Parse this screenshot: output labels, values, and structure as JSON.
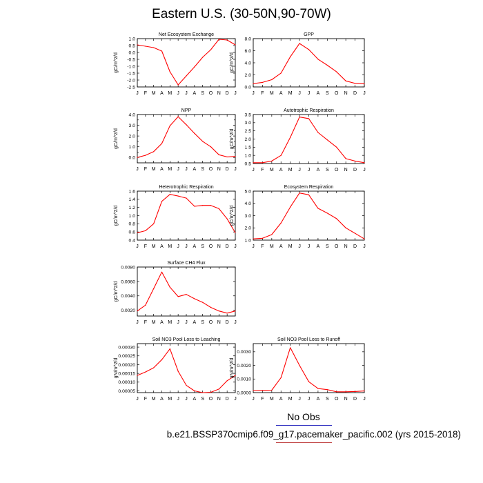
{
  "title": "Eastern U.S. (30-50N,90-70W)",
  "legend": {
    "label": "No Obs",
    "line_color_top": "#3030c0",
    "line_color_bottom": "#c04040"
  },
  "case_label": "b.e21.BSSP370cmip6.f09_g17.pacemaker_pacific.002 (yrs 2015-2018)",
  "series_color": "#ff0000",
  "chart_data": [
    {
      "type": "line",
      "title": "Net Ecosystem Exchange",
      "ylabel": "gC/m^2/d",
      "categories": [
        "J",
        "F",
        "M",
        "A",
        "M",
        "J",
        "J",
        "A",
        "S",
        "O",
        "N",
        "D",
        "J"
      ],
      "ylim": [
        -2.5,
        1.0
      ],
      "yticks": [
        1.0,
        0.5,
        0.0,
        -0.5,
        -1.0,
        -1.5,
        -2.0,
        -2.5
      ],
      "ytick_labels": [
        "1.0",
        "0.5",
        "0.0",
        "-0.5",
        "-1.0",
        "-1.5",
        "-2.0",
        "-2.5"
      ],
      "values": [
        0.55,
        0.45,
        0.35,
        0.1,
        -1.4,
        -2.35,
        -1.7,
        -1.05,
        -0.35,
        0.2,
        0.95,
        0.9,
        0.55
      ]
    },
    {
      "type": "line",
      "title": "GPP",
      "ylabel": "gC/m^2/d",
      "categories": [
        "J",
        "F",
        "M",
        "A",
        "M",
        "J",
        "J",
        "A",
        "S",
        "O",
        "N",
        "D",
        "J"
      ],
      "ylim": [
        0,
        8
      ],
      "yticks": [
        0,
        2,
        4,
        6,
        8
      ],
      "ytick_labels": [
        "0.0",
        "2.0",
        "4.0",
        "6.0",
        "8.0"
      ],
      "values": [
        0.55,
        0.75,
        1.2,
        2.3,
        5.0,
        7.2,
        6.2,
        4.6,
        3.6,
        2.5,
        1.0,
        0.6,
        0.5
      ]
    },
    {
      "type": "line",
      "title": "NPP",
      "ylabel": "gC/m^2/d",
      "categories": [
        "J",
        "F",
        "M",
        "A",
        "M",
        "J",
        "J",
        "A",
        "S",
        "O",
        "N",
        "D",
        "J"
      ],
      "ylim": [
        -0.5,
        4.0
      ],
      "yticks": [
        4.0,
        3.5,
        3.0,
        2.5,
        2.0,
        1.5,
        1.0,
        0.5,
        0.0,
        -0.5
      ],
      "ytick_labels": [
        "4.0",
        "",
        "3.0",
        "",
        "2.0",
        "",
        "1.0",
        "",
        "0.0",
        ""
      ],
      "values": [
        0.0,
        0.2,
        0.55,
        1.3,
        2.95,
        3.8,
        3.05,
        2.25,
        1.5,
        1.0,
        0.25,
        0.05,
        0.1
      ]
    },
    {
      "type": "line",
      "title": "Autotrophic Respiration",
      "ylabel": "gC/m^2/d",
      "categories": [
        "J",
        "F",
        "M",
        "A",
        "M",
        "J",
        "J",
        "A",
        "S",
        "O",
        "N",
        "D",
        "J"
      ],
      "ylim": [
        0.5,
        3.5
      ],
      "yticks": [
        3.5,
        3.0,
        2.5,
        2.0,
        1.5,
        1.0,
        0.5
      ],
      "ytick_labels": [
        "3.5",
        "3.0",
        "2.5",
        "2.0",
        "1.5",
        "1.0",
        "0.5"
      ],
      "values": [
        0.55,
        0.55,
        0.65,
        1.0,
        2.1,
        3.35,
        3.25,
        2.4,
        1.95,
        1.5,
        0.8,
        0.65,
        0.55
      ]
    },
    {
      "type": "line",
      "title": "Heterotrophic Respiration",
      "ylabel": "gC/m^2/d",
      "categories": [
        "J",
        "F",
        "M",
        "A",
        "M",
        "J",
        "J",
        "A",
        "S",
        "O",
        "N",
        "D",
        "J"
      ],
      "ylim": [
        0.4,
        1.6
      ],
      "yticks": [
        1.6,
        1.4,
        1.2,
        1.0,
        0.8,
        0.6,
        0.4
      ],
      "ytick_labels": [
        "1.6",
        "1.4",
        "1.2",
        "1.0",
        "0.8",
        "0.6",
        "0.4"
      ],
      "values": [
        0.58,
        0.63,
        0.8,
        1.35,
        1.52,
        1.48,
        1.43,
        1.23,
        1.25,
        1.25,
        1.17,
        0.92,
        0.58
      ]
    },
    {
      "type": "line",
      "title": "Ecosystem Respiration",
      "ylabel": "gC/m^2/d",
      "categories": [
        "J",
        "F",
        "M",
        "A",
        "M",
        "J",
        "J",
        "A",
        "S",
        "O",
        "N",
        "D",
        "J"
      ],
      "ylim": [
        1.0,
        5.0
      ],
      "yticks": [
        5.0,
        4.0,
        3.0,
        2.0,
        1.0
      ],
      "ytick_labels": [
        "5.0",
        "4.0",
        "3.0",
        "2.0",
        "1.0"
      ],
      "values": [
        1.1,
        1.15,
        1.45,
        2.4,
        3.7,
        4.85,
        4.7,
        3.6,
        3.2,
        2.75,
        2.0,
        1.55,
        1.1
      ]
    },
    {
      "type": "line",
      "title": "Surface CH4 Flux",
      "ylabel": "gC/m^2/d",
      "categories": [
        "J",
        "F",
        "M",
        "A",
        "M",
        "J",
        "J",
        "A",
        "S",
        "O",
        "N",
        "D",
        "J"
      ],
      "ylim": [
        0.0012,
        0.008
      ],
      "yticks": [
        0.008,
        0.006,
        0.004,
        0.002
      ],
      "ytick_labels": [
        "0.0080",
        "0.0060",
        "0.0040",
        "0.0020"
      ],
      "values": [
        0.0019,
        0.0027,
        0.005,
        0.0073,
        0.0052,
        0.0039,
        0.0042,
        0.0036,
        0.0031,
        0.0024,
        0.0019,
        0.0016,
        0.0019
      ]
    },
    {
      "type": "line",
      "title": "Soil NO3 Pool Loss to Leaching",
      "ylabel": "gN/m^2/d",
      "categories": [
        "J",
        "F",
        "M",
        "A",
        "M",
        "J",
        "J",
        "A",
        "S",
        "O",
        "N",
        "D",
        "J"
      ],
      "ylim": [
        4e-05,
        0.00032
      ],
      "yticks": [
        0.0003,
        0.00025,
        0.0002,
        0.00015,
        0.0001,
        5e-05
      ],
      "ytick_labels": [
        "0.00030",
        "0.00025",
        "0.00020",
        "0.00015",
        "0.00010",
        "0.00005"
      ],
      "values": [
        0.000138,
        0.000158,
        0.000182,
        0.000228,
        0.00029,
        0.000162,
        8.2e-05,
        5e-05,
        4e-05,
        4.2e-05,
        6e-05,
        0.000108,
        0.000138
      ]
    },
    {
      "type": "line",
      "title": "Soil NO3 Pool Loss to Runoff",
      "ylabel": "gN/m^2/d",
      "categories": [
        "J",
        "F",
        "M",
        "A",
        "M",
        "J",
        "J",
        "A",
        "S",
        "O",
        "N",
        "D",
        "J"
      ],
      "ylim": [
        0.0,
        0.0036
      ],
      "yticks": [
        0.003,
        0.002,
        0.001,
        0.0
      ],
      "ytick_labels": [
        "0.0030",
        "0.0020",
        "0.0010",
        "0.0000"
      ],
      "values": [
        0.00015,
        0.00016,
        0.00018,
        0.0011,
        0.0033,
        0.002,
        0.0008,
        0.0003,
        0.00022,
        6e-05,
        6e-05,
        8e-05,
        0.00012
      ]
    }
  ]
}
